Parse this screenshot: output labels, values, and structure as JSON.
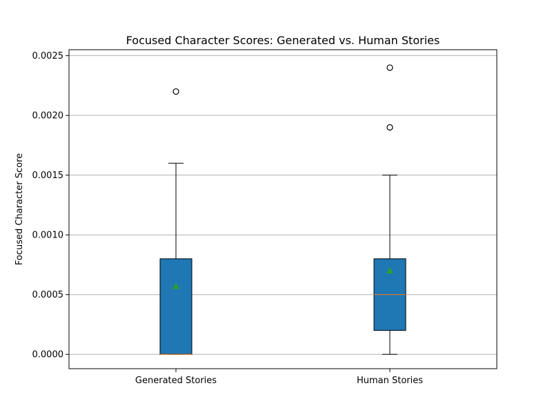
{
  "chart_data": {
    "type": "box",
    "title": "Focused Character Scores: Generated vs. Human Stories",
    "xlabel": "",
    "ylabel": "Focused Character Score",
    "ylim": [
      -0.00012,
      0.00255
    ],
    "y_ticks": [
      0.0,
      0.0005,
      0.001,
      0.0015,
      0.002,
      0.0025
    ],
    "y_tick_labels": [
      "0.0000",
      "0.0005",
      "0.0010",
      "0.0015",
      "0.0020",
      "0.0025"
    ],
    "grid": "y",
    "categories": [
      "Generated Stories",
      "Human Stories"
    ],
    "boxes": [
      {
        "category": "Generated Stories",
        "whisker_low": 0.0,
        "q1": 0.0,
        "median": 0.0,
        "q3": 0.0008,
        "whisker_high": 0.0016,
        "mean": 0.00057,
        "outliers": [
          0.0022
        ]
      },
      {
        "category": "Human Stories",
        "whisker_low": 0.0,
        "q1": 0.0002,
        "median": 0.0005,
        "q3": 0.0008,
        "whisker_high": 0.0015,
        "mean": 0.0007,
        "outliers": [
          0.0019,
          0.0024
        ]
      }
    ],
    "colors": {
      "box_fill": "#1f77b4",
      "median": "#ff7f0e",
      "mean_marker": "#2ca02c",
      "grid": "#b0b0b0",
      "axis": "#000000"
    }
  }
}
